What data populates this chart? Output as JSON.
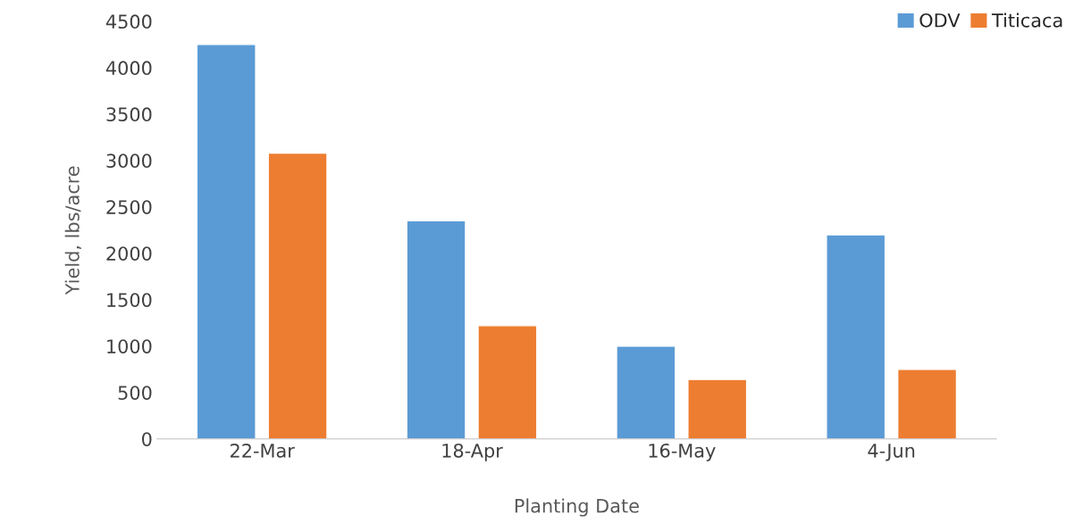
{
  "chart_data": {
    "type": "bar",
    "xlabel": "Planting Date",
    "ylabel": "Yield, lbs/acre",
    "categories": [
      "22-Mar",
      "18-Apr",
      "16-May",
      "4-Jun"
    ],
    "series": [
      {
        "name": "ODV",
        "color": "#5b9bd5",
        "values": [
          4250,
          2350,
          1000,
          2200
        ]
      },
      {
        "name": "Titicaca",
        "color": "#ed7d31",
        "values": [
          3080,
          1220,
          640,
          750
        ]
      }
    ],
    "ylim": [
      0,
      4500
    ],
    "yticks": [
      0,
      500,
      1000,
      1500,
      2000,
      2500,
      3000,
      3500,
      4000,
      4500
    ],
    "grid": false,
    "legend": "top right"
  }
}
